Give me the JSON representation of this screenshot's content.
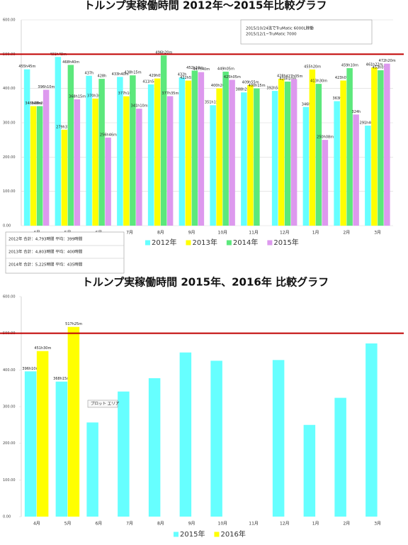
{
  "chart_data": [
    {
      "type": "bar",
      "title": "トルンプ実稼働時間 2012年～2015年比較グラフ",
      "categories": [
        "4月",
        "5月",
        "6月",
        "7月",
        "8月",
        "9月",
        "10月",
        "11月",
        "12月",
        "1月",
        "2月",
        "3月"
      ],
      "series": [
        {
          "name": "2012年",
          "color": "#66ffff",
          "values": [
            455.75,
            491.82,
            437,
            433.67,
            411.9,
            432,
            351.25,
            388.47,
            392.9,
            346,
            363,
            291.67
          ],
          "value_labels": [
            "455h45m",
            "491h49m",
            "437h",
            "433h40m",
            "411h54m",
            "432h",
            "351h15m",
            "388h28m",
            "392h54m",
            "346h",
            "363h",
            "291h40m"
          ]
        },
        {
          "name": "2013年",
          "color": "#ffff00",
          "values": [
            348.47,
            279.62,
            370.5,
            377.17,
            429.08,
            422.92,
            400.33,
            409.92,
            428,
            455.33,
            423.12,
            461.37
          ],
          "value_labels": [
            "348h28m",
            "279h37m",
            "370h30m",
            "377h10m",
            "429h05m",
            "422h55m",
            "400h20m",
            "409h55m",
            "428h",
            "455h20m",
            "423h07m",
            "461h22m"
          ]
        },
        {
          "name": "2014年",
          "color": "#5ce87c",
          "values": [
            348.47,
            468.67,
            428,
            438.25,
            496.33,
            452.17,
            449.08,
            400.25,
            420.17,
            413.5,
            459.17,
            453.08
          ],
          "value_labels": [
            "348h28m",
            "468h40m",
            "428h",
            "438h15m",
            "496h20m",
            "452h10m",
            "449h05m",
            "400h15m",
            "420h10m",
            "413h30m",
            "459h10m",
            "453h05m"
          ]
        },
        {
          "name": "2015年",
          "color": "#dd99ee",
          "values": [
            396.17,
            368.25,
            256.77,
            341.17,
            377.58,
            447.67,
            425.08,
            null,
            427.08,
            250.13,
            324,
            472.33
          ],
          "value_labels": [
            "396h10m",
            "368h15m",
            "256h46m",
            "341h10m",
            "377h35m",
            "447h40m",
            "425h05m",
            null,
            "427h05m",
            "250h08m",
            "324h",
            "472h20m"
          ]
        }
      ],
      "ylim": [
        0,
        600
      ],
      "yticks": [
        {
          "value": 0,
          "label": "0.00"
        },
        {
          "value": 100,
          "label": "100.00"
        },
        {
          "value": 200,
          "label": "200.00"
        },
        {
          "value": 300,
          "label": "300.00"
        },
        {
          "value": 400,
          "label": "400.00"
        },
        {
          "value": 500,
          "label": "500.00"
        },
        {
          "value": 600,
          "label": "600.00"
        }
      ],
      "grid": true,
      "reference_line": {
        "value": 500,
        "color": "#c00000"
      },
      "annotations": [
        "2015/10/24迄でTruMatic 6000L稼働",
        "2015/12/1~TruMatic 7000"
      ],
      "summary": [
        "2012年 合計：4,793時間 平均：399時間",
        "2013年 合計：4,803時間 平均：400時間",
        "2014年 合計：5,225時間 平均：435時間"
      ]
    },
    {
      "type": "bar",
      "title": "トルンプ実稼働時間 2015年、2016年 比較グラフ",
      "categories": [
        "4月",
        "5月",
        "6月",
        "7月",
        "8月",
        "9月",
        "10月",
        "11月",
        "12月",
        "1月",
        "2月",
        "3月"
      ],
      "series": [
        {
          "name": "2015年",
          "color": "#66ffff",
          "values": [
            396.17,
            368.25,
            256.77,
            341.17,
            377.58,
            447.67,
            425.08,
            null,
            427.08,
            250.13,
            324,
            472.33
          ],
          "value_labels": [
            "396h10m",
            "368h15m",
            null,
            null,
            null,
            null,
            null,
            null,
            null,
            null,
            null,
            null
          ]
        },
        {
          "name": "2016年",
          "color": "#ffff00",
          "values": [
            451.5,
            517.42,
            null,
            null,
            null,
            null,
            null,
            null,
            null,
            null,
            null,
            null
          ],
          "value_labels": [
            "451h30m",
            "517h25m",
            null,
            null,
            null,
            null,
            null,
            null,
            null,
            null,
            null,
            null
          ]
        }
      ],
      "ylim": [
        0,
        600
      ],
      "yticks": [
        {
          "value": 0,
          "label": "0.00"
        },
        {
          "value": 100,
          "label": "100.00"
        },
        {
          "value": 200,
          "label": "200.00"
        },
        {
          "value": 300,
          "label": "300.00"
        },
        {
          "value": 400,
          "label": "400.00"
        },
        {
          "value": 500,
          "label": "500.00"
        },
        {
          "value": 600,
          "label": "600.00"
        }
      ],
      "grid": false,
      "reference_line": {
        "value": 500,
        "color": "#c00000"
      },
      "annotations": [
        "プロット エリア"
      ]
    }
  ]
}
